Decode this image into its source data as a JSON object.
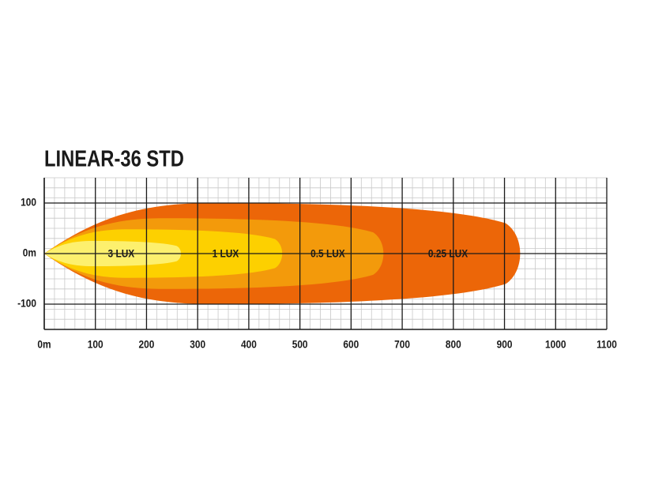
{
  "chart_data": {
    "type": "beam",
    "title": "LINEAR-36 STD",
    "xlim": [
      0,
      1100
    ],
    "xticks": [
      {
        "value": 0,
        "label": "0m"
      },
      100,
      200,
      300,
      400,
      500,
      600,
      700,
      800,
      900,
      1000,
      1100
    ],
    "ylim": [
      -150,
      150
    ],
    "yticks": [
      -100,
      {
        "value": 0,
        "label": "0m"
      },
      100
    ],
    "grid": true,
    "series": [
      {
        "name": "0.25 LUX",
        "color": "#ec6608",
        "reach": 940,
        "spread": 100
      },
      {
        "name": "0.5 LUX",
        "color": "#f39a0b",
        "reach": 670,
        "spread": 70
      },
      {
        "name": "1 LUX",
        "color": "#fdd000",
        "reach": 470,
        "spread": 48
      },
      {
        "name": "3 LUX",
        "color": "#fdf06e",
        "reach": 270,
        "spread": 25
      }
    ]
  }
}
